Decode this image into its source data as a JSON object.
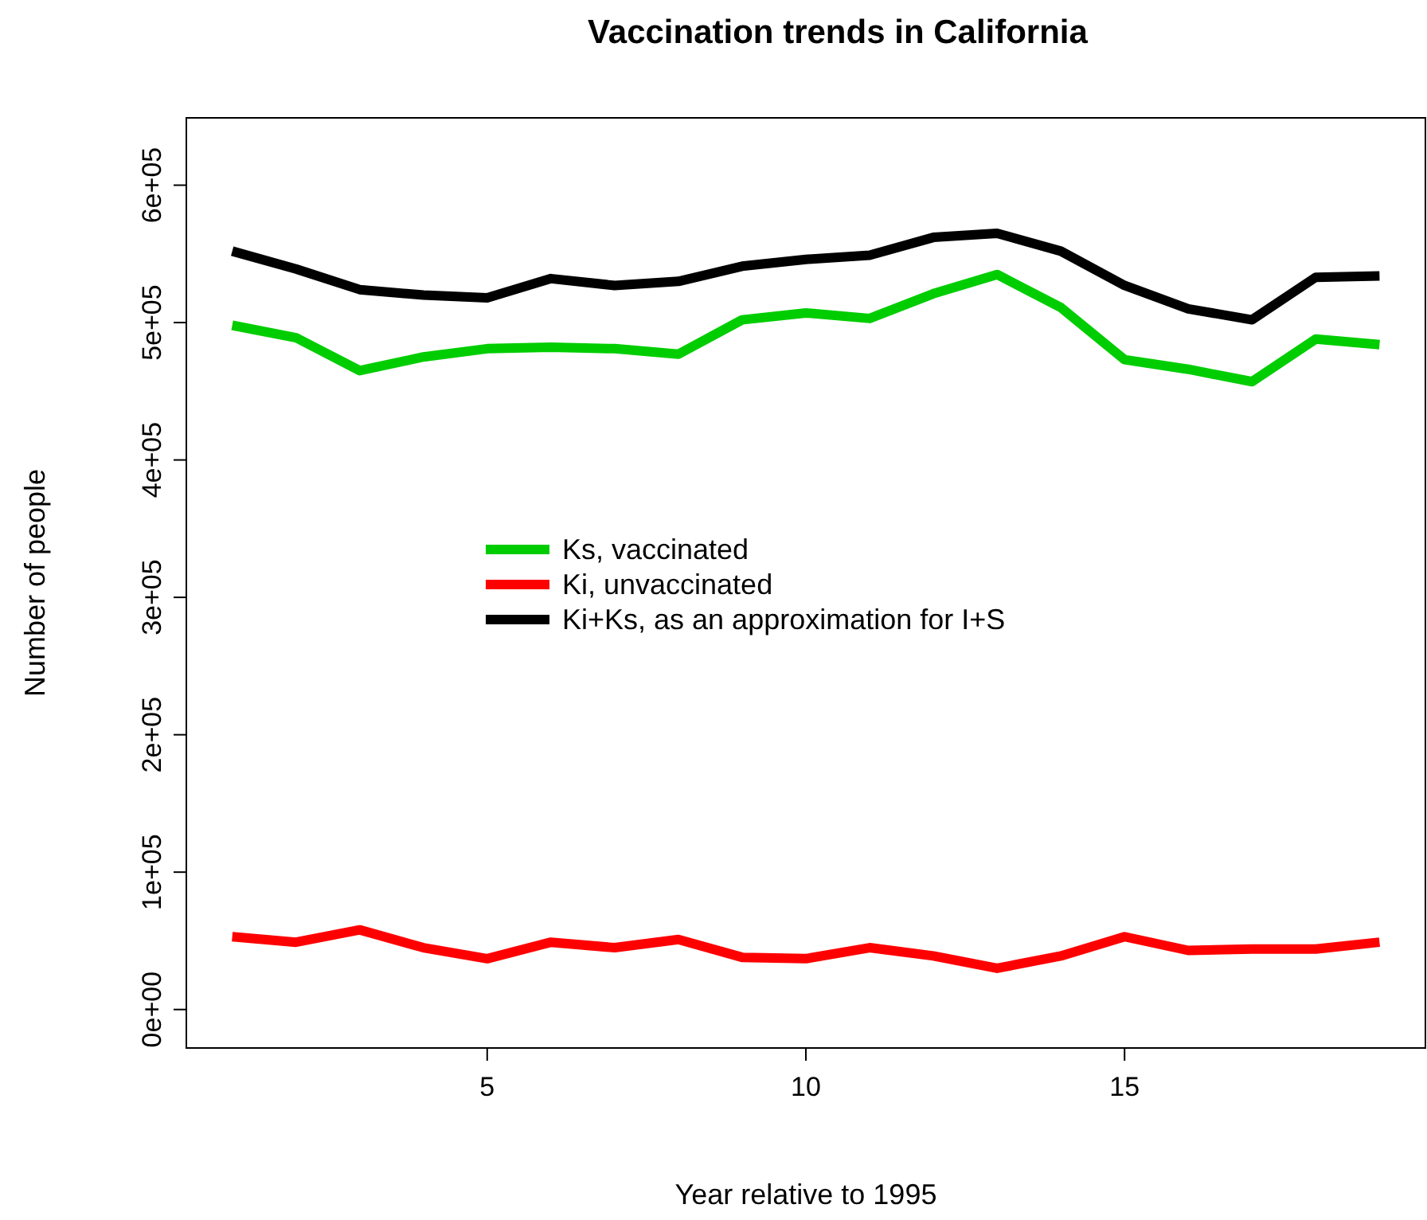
{
  "chart_data": {
    "type": "line",
    "title": "Vaccination trends in California",
    "xlabel": "Year relative to 1995",
    "ylabel": "Number of people",
    "x": [
      1,
      2,
      3,
      4,
      5,
      6,
      7,
      8,
      9,
      10,
      11,
      12,
      13,
      14,
      15,
      16,
      17,
      18,
      19
    ],
    "xlim": [
      0.28,
      19.72
    ],
    "xticks": [
      5,
      10,
      15
    ],
    "ylim": [
      -28000,
      649000
    ],
    "yticks": [
      {
        "value": 0,
        "label": "0e+00"
      },
      {
        "value": 100000,
        "label": "1e+05"
      },
      {
        "value": 200000,
        "label": "2e+05"
      },
      {
        "value": 300000,
        "label": "3e+05"
      },
      {
        "value": 400000,
        "label": "4e+05"
      },
      {
        "value": 500000,
        "label": "5e+05"
      },
      {
        "value": 600000,
        "label": "6e+05"
      }
    ],
    "legend": "center",
    "grid": false,
    "line_style": "solid",
    "marker": "none",
    "series": [
      {
        "name": "Ks, vaccinated",
        "color": "#00cd00",
        "values": [
          498000,
          489000,
          465000,
          475000,
          481000,
          482000,
          481000,
          477000,
          502000,
          507000,
          503000,
          521000,
          535000,
          511000,
          473000,
          466000,
          457000,
          488000,
          484000
        ]
      },
      {
        "name": "Ki, unvaccinated",
        "color": "#ff0000",
        "values": [
          53000,
          49000,
          58000,
          45000,
          37000,
          49000,
          45000,
          51000,
          38000,
          37000,
          45000,
          39000,
          30000,
          39000,
          53000,
          43000,
          44000,
          44000,
          49000
        ]
      },
      {
        "name": "Ki+Ks, as an approximation for I+S",
        "color": "#000000",
        "values": [
          552000,
          539000,
          524000,
          520000,
          518000,
          532000,
          527000,
          530000,
          541000,
          546000,
          549000,
          562000,
          565000,
          552000,
          527000,
          510000,
          502000,
          533000,
          534000
        ]
      }
    ]
  }
}
